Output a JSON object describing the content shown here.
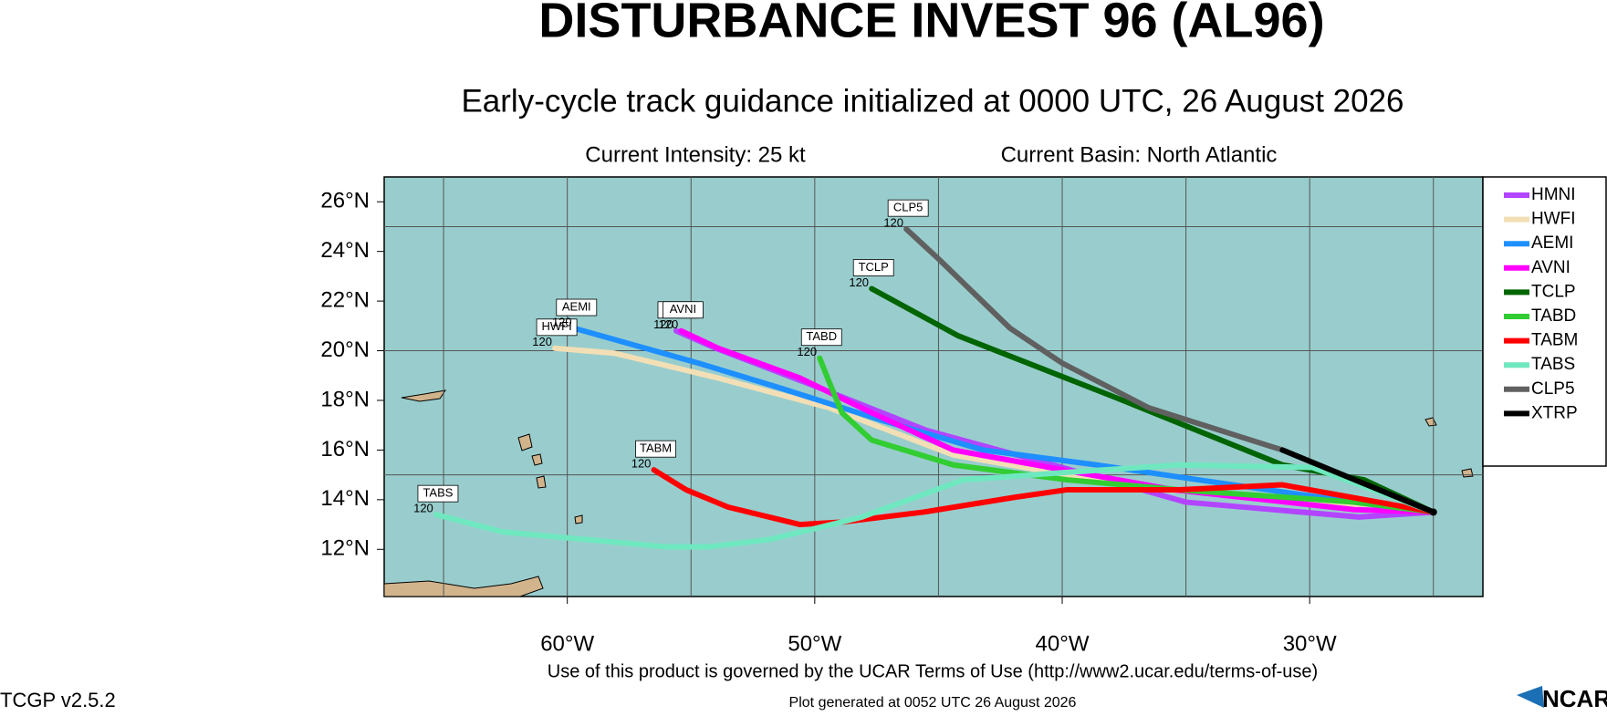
{
  "chart_data": {
    "type": "track-map",
    "title": "DISTURBANCE INVEST 96 (AL96)",
    "subtitle": "Early-cycle track guidance initialized at 0000 UTC, 26 August 2026",
    "intensity": "Current Intensity: 25 kt",
    "basin": "Current Basin: North Atlantic",
    "terms": "Use of this product is governed by the UCAR Terms of Use (http://www2.ucar.edu/terms-of-use)",
    "version": "TCGP v2.5.2",
    "generated": "Plot generated at 0052 UTC   26 August 2026",
    "logo": "NCAR",
    "xlim": [
      -67.4,
      -23.0
    ],
    "ylim": [
      10.1,
      27.0
    ],
    "xticks": [
      {
        "value": -60,
        "label": "60°W"
      },
      {
        "value": -50,
        "label": "50°W"
      },
      {
        "value": -40,
        "label": "40°W"
      },
      {
        "value": -30,
        "label": "30°W"
      }
    ],
    "yticks": [
      {
        "value": 12,
        "label": "12°N"
      },
      {
        "value": 14,
        "label": "14°N"
      },
      {
        "value": 16,
        "label": "16°N"
      },
      {
        "value": 18,
        "label": "18°N"
      },
      {
        "value": 20,
        "label": "20°N"
      },
      {
        "value": 22,
        "label": "22°N"
      },
      {
        "value": 24,
        "label": "24°N"
      },
      {
        "value": 26,
        "label": "26°N"
      }
    ],
    "xgrid": [
      -65,
      -60,
      -55,
      -50,
      -45,
      -40,
      -35,
      -30,
      -25
    ],
    "ygrid": [
      15,
      20,
      25
    ],
    "series": [
      {
        "name": "HMNI",
        "color": "#b245ff",
        "end_hour": 120,
        "lon": [
          -25.0,
          -28.0,
          -35.0,
          -40.0,
          -45.5,
          -49.8,
          -54.0,
          -55.6
        ],
        "lat": [
          13.5,
          13.3,
          13.9,
          15.3,
          16.8,
          18.5,
          20.1,
          20.8
        ]
      },
      {
        "name": "HWFI",
        "color": "#f3dfb5",
        "end_hour": 120,
        "lon": [
          -25.0,
          -35.7,
          -39.8,
          -44.4,
          -49.4,
          -53.9,
          -58.1,
          -60.5
        ],
        "lat": [
          13.5,
          14.4,
          15.0,
          15.8,
          17.7,
          18.9,
          19.9,
          20.1
        ]
      },
      {
        "name": "AEMI",
        "color": "#1e8fff",
        "end_hour": 120,
        "lon": [
          -25.0,
          -28.2,
          -34.5,
          -38.6,
          -43.2,
          -47.3,
          -51.4,
          -54.7,
          -59.7
        ],
        "lat": [
          13.5,
          13.9,
          14.8,
          15.4,
          16.0,
          17.2,
          18.5,
          19.5,
          20.9
        ]
      },
      {
        "name": "AVNI",
        "color": "#ff00ff",
        "end_hour": 120,
        "lon": [
          -25.0,
          -28.2,
          -35.5,
          -39.4,
          -44.4,
          -47.7,
          -50.6,
          -53.9,
          -55.4
        ],
        "lat": [
          13.5,
          13.6,
          14.4,
          15.1,
          16.0,
          17.5,
          18.9,
          20.1,
          20.8
        ]
      },
      {
        "name": "TCLP",
        "color": "#006400",
        "end_hour": 120,
        "lon": [
          -25.0,
          -27.8,
          -31.1,
          -37.8,
          -44.2,
          -47.7
        ],
        "lat": [
          13.5,
          14.8,
          15.4,
          18.1,
          20.6,
          22.5
        ]
      },
      {
        "name": "TABD",
        "color": "#32cd32",
        "end_hour": 120,
        "lon": [
          -25.0,
          -28.2,
          -35.3,
          -39.8,
          -44.4,
          -47.7,
          -48.9,
          -49.4,
          -49.8
        ],
        "lat": [
          13.5,
          13.9,
          14.4,
          14.8,
          15.4,
          16.4,
          17.5,
          18.7,
          19.7
        ]
      },
      {
        "name": "TABM",
        "color": "#ff0000",
        "end_hour": 120,
        "lon": [
          -25.0,
          -31.1,
          -35.3,
          -39.8,
          -41.9,
          -45.6,
          -48.9,
          -50.6,
          -53.5,
          -55.2,
          -56.5
        ],
        "lat": [
          13.5,
          14.6,
          14.4,
          14.4,
          14.1,
          13.5,
          13.1,
          13.0,
          13.7,
          14.4,
          15.2
        ]
      },
      {
        "name": "TABS",
        "color": "#6fe8c0",
        "end_hour": 120,
        "lon": [
          -25.0,
          -29.9,
          -35.3,
          -39.8,
          -44.0,
          -48.1,
          -51.8,
          -54.3,
          -56.0,
          -59.3,
          -62.6,
          -65.3
        ],
        "lat": [
          13.5,
          15.3,
          15.4,
          15.1,
          14.8,
          13.3,
          12.4,
          12.1,
          12.1,
          12.4,
          12.7,
          13.4
        ]
      },
      {
        "name": "CLP5",
        "color": "#606060",
        "end_hour": 120,
        "lon": [
          -25.0,
          -31.1,
          -36.5,
          -40.0,
          -42.1,
          -45.0,
          -46.3
        ],
        "lat": [
          13.5,
          16.0,
          17.7,
          19.5,
          20.9,
          23.7,
          24.9
        ]
      },
      {
        "name": "XTRP",
        "color": "#000000",
        "lon": [
          -25.0,
          -31.1
        ],
        "lat": [
          13.5,
          16.0
        ]
      }
    ]
  }
}
